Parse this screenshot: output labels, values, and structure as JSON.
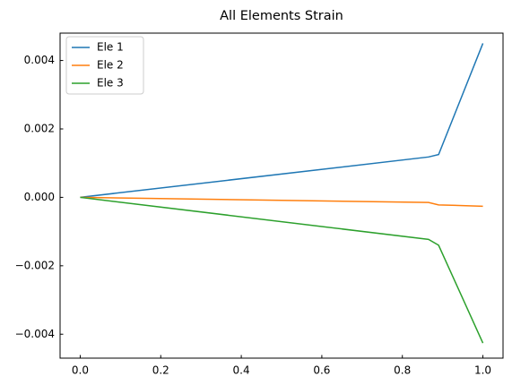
{
  "chart_data": {
    "type": "line",
    "title": "All Elements Strain",
    "x": [
      0,
      0.865,
      0.89,
      1.0
    ],
    "series": [
      {
        "name": "Ele 1",
        "color": "#1f77b4",
        "values": [
          0,
          0.00118,
          0.00125,
          0.0045
        ]
      },
      {
        "name": "Ele 2",
        "color": "#ff7f0e",
        "values": [
          0,
          -0.00015,
          -0.00022,
          -0.00026
        ]
      },
      {
        "name": "Ele 3",
        "color": "#2ca02c",
        "values": [
          0,
          -0.00123,
          -0.0014,
          -0.00426
        ]
      }
    ],
    "xlim": [
      -0.05,
      1.05
    ],
    "xticks": [
      {
        "value": 0,
        "label": "0.0"
      },
      {
        "value": 0.2,
        "label": "0.2"
      },
      {
        "value": 0.4,
        "label": "0.4"
      },
      {
        "value": 0.6,
        "label": "0.6"
      },
      {
        "value": 0.8,
        "label": "0.8"
      },
      {
        "value": 1,
        "label": "1.0"
      }
    ],
    "ylim": [
      -0.0047,
      0.0048
    ],
    "yticks": [
      {
        "value": -0.004,
        "label": "−0.004"
      },
      {
        "value": -0.002,
        "label": "−0.002"
      },
      {
        "value": 0,
        "label": "0.000"
      },
      {
        "value": 0.002,
        "label": "0.002"
      },
      {
        "value": 0.004,
        "label": "0.004"
      }
    ],
    "legend": "upper left",
    "grid": false
  }
}
